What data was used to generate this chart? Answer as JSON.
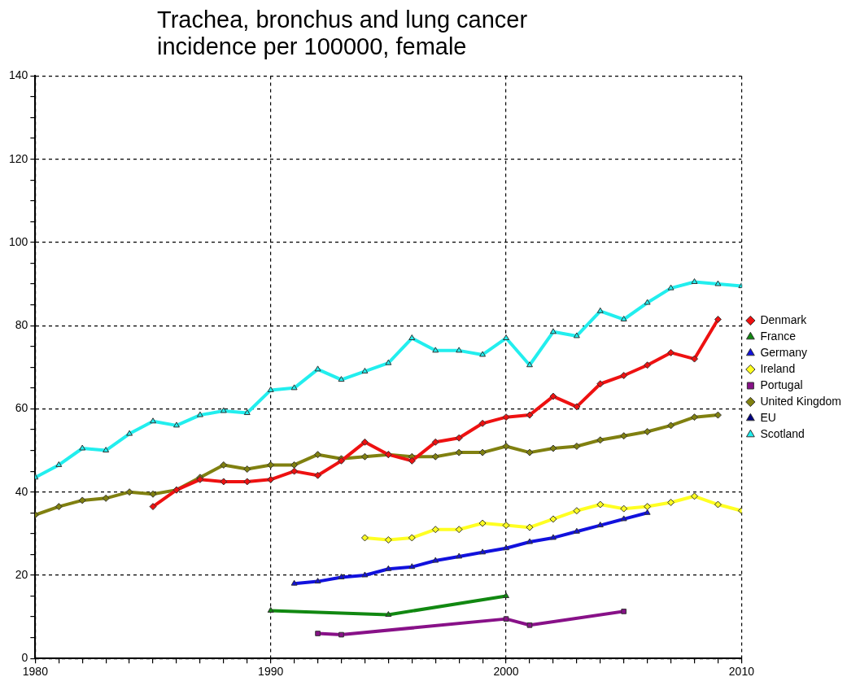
{
  "chart_data": {
    "type": "line",
    "title": "Trachea, bronchus and lung cancer incidence per 100000, female",
    "xlim": [
      1980,
      2010
    ],
    "xticks": [
      1980,
      {
        "value": 1981,
        "label": null
      },
      {
        "value": 1982,
        "label": null
      },
      {
        "value": 1983,
        "label": null
      },
      {
        "value": 1984,
        "label": null
      },
      {
        "value": 1985,
        "label": null
      },
      {
        "value": 1986,
        "label": null
      },
      {
        "value": 1987,
        "label": null
      },
      {
        "value": 1988,
        "label": null
      },
      {
        "value": 1989,
        "label": null
      },
      1990,
      {
        "value": 1991,
        "label": null
      },
      {
        "value": 1992,
        "label": null
      },
      {
        "value": 1993,
        "label": null
      },
      {
        "value": 1994,
        "label": null
      },
      {
        "value": 1995,
        "label": null
      },
      {
        "value": 1996,
        "label": null
      },
      {
        "value": 1997,
        "label": null
      },
      {
        "value": 1998,
        "label": null
      },
      {
        "value": 1999,
        "label": null
      },
      2000,
      {
        "value": 2001,
        "label": null
      },
      {
        "value": 2002,
        "label": null
      },
      {
        "value": 2003,
        "label": null
      },
      {
        "value": 2004,
        "label": null
      },
      {
        "value": 2005,
        "label": null
      },
      {
        "value": 2006,
        "label": null
      },
      {
        "value": 2007,
        "label": null
      },
      {
        "value": 2008,
        "label": null
      },
      {
        "value": 2009,
        "label": null
      },
      2010
    ],
    "ylim": [
      0,
      140
    ],
    "yticks": [
      0,
      {
        "value": 5,
        "label": null
      },
      {
        "value": 10,
        "label": null
      },
      {
        "value": 15,
        "label": null
      },
      20,
      {
        "value": 25,
        "label": null
      },
      {
        "value": 30,
        "label": null
      },
      {
        "value": 35,
        "label": null
      },
      40,
      {
        "value": 45,
        "label": null
      },
      {
        "value": 50,
        "label": null
      },
      {
        "value": 55,
        "label": null
      },
      60,
      {
        "value": 65,
        "label": null
      },
      {
        "value": 70,
        "label": null
      },
      {
        "value": 75,
        "label": null
      },
      80,
      {
        "value": 85,
        "label": null
      },
      {
        "value": 90,
        "label": null
      },
      {
        "value": 95,
        "label": null
      },
      100,
      {
        "value": 105,
        "label": null
      },
      {
        "value": 110,
        "label": null
      },
      {
        "value": 115,
        "label": null
      },
      120,
      {
        "value": 125,
        "label": null
      },
      {
        "value": 130,
        "label": null
      },
      {
        "value": 135,
        "label": null
      },
      140
    ],
    "grid": true,
    "legend": "right",
    "line_style": "solid",
    "series": [
      {
        "name": "Denmark",
        "color": "#ee1111",
        "marker": "diamond",
        "x": [
          1985,
          1986,
          1987,
          1988,
          1989,
          1990,
          1991,
          1992,
          1993,
          1994,
          1995,
          1996,
          1997,
          1998,
          1999,
          2000,
          2001,
          2002,
          2003,
          2004,
          2005,
          2006,
          2007,
          2008,
          2009
        ],
        "values": [
          36.5,
          40.5,
          43,
          42.5,
          42.5,
          43,
          45,
          44,
          47.5,
          52,
          49,
          47.5,
          52,
          53,
          56.5,
          58,
          58.5,
          63,
          60.5,
          66,
          68,
          70.5,
          73.5,
          72,
          81.5
        ]
      },
      {
        "name": "France",
        "color": "#118811",
        "marker": "triangle",
        "x": [
          1990,
          1995,
          2000
        ],
        "values": [
          11.5,
          10.5,
          15
        ]
      },
      {
        "name": "Germany",
        "color": "#1111dd",
        "marker": "triangle",
        "x": [
          1991,
          1992,
          1993,
          1994,
          1995,
          1996,
          1997,
          1998,
          1999,
          2000,
          2001,
          2002,
          2003,
          2004,
          2005,
          2006
        ],
        "values": [
          18,
          18.5,
          19.5,
          20,
          21.5,
          22,
          23.5,
          24.5,
          25.5,
          26.5,
          28,
          29,
          30.5,
          32,
          33.5,
          35
        ]
      },
      {
        "name": "Ireland",
        "color": "#ffff22",
        "marker": "diamond",
        "x": [
          1994,
          1995,
          1996,
          1997,
          1998,
          1999,
          2000,
          2001,
          2002,
          2003,
          2004,
          2005,
          2006,
          2007,
          2008,
          2009,
          2010
        ],
        "values": [
          29,
          28.5,
          29,
          31,
          31,
          32.5,
          32,
          31.5,
          33.5,
          35.5,
          37,
          36,
          36.5,
          37.5,
          39,
          37,
          35.5
        ]
      },
      {
        "name": "Portugal",
        "color": "#881188",
        "marker": "square",
        "x": [
          1992,
          1993,
          2000,
          2001,
          2005
        ],
        "values": [
          6,
          5.7,
          9.5,
          8,
          11.3
        ]
      },
      {
        "name": "United Kingdom",
        "color": "#808010",
        "marker": "diamond",
        "x": [
          1980,
          1981,
          1982,
          1983,
          1984,
          1985,
          1986,
          1987,
          1988,
          1989,
          1990,
          1991,
          1992,
          1993,
          1994,
          1995,
          1996,
          1997,
          1998,
          1999,
          2000,
          2001,
          2002,
          2003,
          2004,
          2005,
          2006,
          2007,
          2008,
          2009
        ],
        "values": [
          34.5,
          36.5,
          38,
          38.5,
          40,
          39.5,
          40.5,
          43.5,
          46.5,
          45.5,
          46.5,
          46.5,
          49,
          48,
          48.5,
          49,
          48.5,
          48.5,
          49.5,
          49.5,
          51,
          49.5,
          50.5,
          51,
          52.5,
          53.5,
          54.5,
          56,
          58,
          58.5
        ]
      },
      {
        "name": "EU",
        "color": "#000080",
        "marker": "triangle"
      },
      {
        "name": "Scotland",
        "color": "#22eeee",
        "marker": "triangle",
        "x": [
          1980,
          1981,
          1982,
          1983,
          1984,
          1985,
          1986,
          1987,
          1988,
          1989,
          1990,
          1991,
          1992,
          1993,
          1994,
          1995,
          1996,
          1997,
          1998,
          1999,
          2000,
          2001,
          2002,
          2003,
          2004,
          2005,
          2006,
          2007,
          2008,
          2009,
          2010
        ],
        "values": [
          43.5,
          46.5,
          50.5,
          50,
          54,
          57,
          56,
          58.5,
          59.5,
          59,
          64.5,
          65,
          69.5,
          67,
          69,
          71,
          77,
          74,
          74,
          73,
          77,
          70.5,
          78.5,
          77.5,
          83.5,
          81.5,
          85.5,
          89,
          90.5,
          90,
          89.5
        ]
      }
    ]
  }
}
